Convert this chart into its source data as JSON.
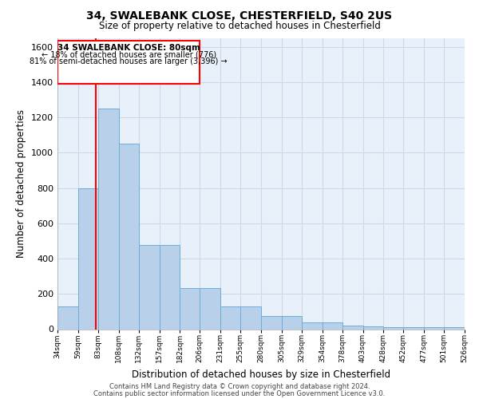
{
  "title1": "34, SWALEBANK CLOSE, CHESTERFIELD, S40 2US",
  "title2": "Size of property relative to detached houses in Chesterfield",
  "xlabel": "Distribution of detached houses by size in Chesterfield",
  "ylabel": "Number of detached properties",
  "annotation_line1": "34 SWALEBANK CLOSE: 80sqm",
  "annotation_line2": "← 18% of detached houses are smaller (776)",
  "annotation_line3": "81% of semi-detached houses are larger (3,396) →",
  "footer1": "Contains HM Land Registry data © Crown copyright and database right 2024.",
  "footer2": "Contains public sector information licensed under the Open Government Licence v3.0.",
  "bin_edges": [
    34,
    59,
    83,
    108,
    132,
    157,
    182,
    206,
    231,
    255,
    280,
    305,
    329,
    354,
    378,
    403,
    428,
    452,
    477,
    501,
    526
  ],
  "bar_heights": [
    130,
    800,
    1250,
    1050,
    475,
    475,
    235,
    235,
    130,
    130,
    75,
    75,
    38,
    38,
    20,
    18,
    10,
    10,
    10,
    10
  ],
  "bar_color": "#b8d0ea",
  "bar_edge_color": "#6aaed6",
  "background_color": "#e8f0fa",
  "red_line_x": 80,
  "ylim": [
    0,
    1650
  ],
  "yticks": [
    0,
    200,
    400,
    600,
    800,
    1000,
    1200,
    1400,
    1600
  ],
  "grid_color": "#d0d8e8",
  "fig_width": 6.0,
  "fig_height": 5.0,
  "dpi": 100
}
